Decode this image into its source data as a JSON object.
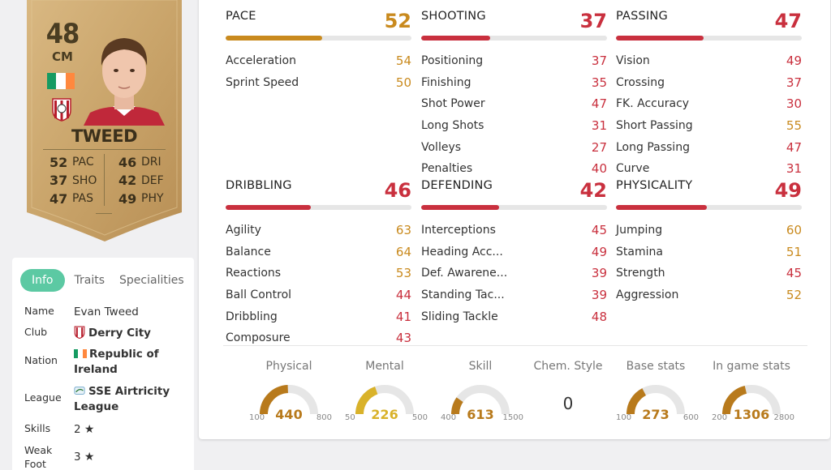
{
  "card": {
    "rating": "48",
    "position": "CM",
    "name": "TWEED",
    "stats_left": [
      {
        "value": "52",
        "key": "PAC"
      },
      {
        "value": "37",
        "key": "SHO"
      },
      {
        "value": "47",
        "key": "PAS"
      }
    ],
    "stats_right": [
      {
        "value": "46",
        "key": "DRI"
      },
      {
        "value": "42",
        "key": "DEF"
      },
      {
        "value": "49",
        "key": "PHY"
      }
    ]
  },
  "info": {
    "tabs": [
      "Info",
      "Traits",
      "Specialities"
    ],
    "rows": [
      {
        "label": "Name",
        "value": "Evan Tweed"
      },
      {
        "label": "Club",
        "value": "Derry City"
      },
      {
        "label": "Nation",
        "value": "Republic of Ireland"
      },
      {
        "label": "League",
        "value": "SSE Airtricity League"
      },
      {
        "label": "Skills",
        "value": "2"
      },
      {
        "label": "Weak Foot",
        "value": "3"
      }
    ]
  },
  "categories": [
    {
      "title": "PACE",
      "value": "52",
      "color": "#c98a1e",
      "fill": 0.52,
      "subs": [
        {
          "name": "Acceleration",
          "value": "54",
          "color": "#c98a1e"
        },
        {
          "name": "Sprint Speed",
          "value": "50",
          "color": "#c98a1e"
        }
      ]
    },
    {
      "title": "SHOOTING",
      "value": "37",
      "color": "#c9303e",
      "fill": 0.37,
      "subs": [
        {
          "name": "Positioning",
          "value": "37",
          "color": "#c9303e"
        },
        {
          "name": "Finishing",
          "value": "35",
          "color": "#c9303e"
        },
        {
          "name": "Shot Power",
          "value": "47",
          "color": "#c9303e"
        },
        {
          "name": "Long Shots",
          "value": "31",
          "color": "#c9303e"
        },
        {
          "name": "Volleys",
          "value": "27",
          "color": "#c9303e"
        },
        {
          "name": "Penalties",
          "value": "40",
          "color": "#c9303e"
        }
      ]
    },
    {
      "title": "PASSING",
      "value": "47",
      "color": "#c9303e",
      "fill": 0.47,
      "subs": [
        {
          "name": "Vision",
          "value": "49",
          "color": "#c9303e"
        },
        {
          "name": "Crossing",
          "value": "37",
          "color": "#c9303e"
        },
        {
          "name": "FK. Accuracy",
          "value": "30",
          "color": "#c9303e"
        },
        {
          "name": "Short Passing",
          "value": "55",
          "color": "#c98a1e"
        },
        {
          "name": "Long Passing",
          "value": "47",
          "color": "#c9303e"
        },
        {
          "name": "Curve",
          "value": "31",
          "color": "#c9303e"
        }
      ]
    },
    {
      "title": "DRIBBLING",
      "value": "46",
      "color": "#c9303e",
      "fill": 0.46,
      "subs": [
        {
          "name": "Agility",
          "value": "63",
          "color": "#c98a1e"
        },
        {
          "name": "Balance",
          "value": "64",
          "color": "#c98a1e"
        },
        {
          "name": "Reactions",
          "value": "53",
          "color": "#c98a1e"
        },
        {
          "name": "Ball Control",
          "value": "44",
          "color": "#c9303e"
        },
        {
          "name": "Dribbling",
          "value": "41",
          "color": "#c9303e"
        },
        {
          "name": "Composure",
          "value": "43",
          "color": "#c9303e"
        }
      ]
    },
    {
      "title": "DEFENDING",
      "value": "42",
      "color": "#c9303e",
      "fill": 0.42,
      "subs": [
        {
          "name": "Interceptions",
          "value": "45",
          "color": "#c9303e"
        },
        {
          "name": "Heading Acc...",
          "value": "49",
          "color": "#c9303e"
        },
        {
          "name": "Def. Awarene...",
          "value": "39",
          "color": "#c9303e"
        },
        {
          "name": "Standing Tac...",
          "value": "39",
          "color": "#c9303e"
        },
        {
          "name": "Sliding Tackle",
          "value": "48",
          "color": "#c9303e"
        }
      ]
    },
    {
      "title": "PHYSICALITY",
      "value": "49",
      "color": "#c9303e",
      "fill": 0.49,
      "subs": [
        {
          "name": "Jumping",
          "value": "60",
          "color": "#c98a1e"
        },
        {
          "name": "Stamina",
          "value": "51",
          "color": "#c98a1e"
        },
        {
          "name": "Strength",
          "value": "45",
          "color": "#c9303e"
        },
        {
          "name": "Aggression",
          "value": "52",
          "color": "#c98a1e"
        }
      ]
    }
  ],
  "gauges": [
    {
      "label": "Physical",
      "value": "440",
      "min": "100",
      "max": "800",
      "fill": 0.486,
      "color": "#b87a1c"
    },
    {
      "label": "Mental",
      "value": "226",
      "min": "50",
      "max": "500",
      "fill": 0.391,
      "color": "#d9b22a"
    },
    {
      "label": "Skill",
      "value": "613",
      "min": "400",
      "max": "1500",
      "fill": 0.194,
      "color": "#b87a1c"
    },
    {
      "label": "Chem. Style",
      "value": "0"
    },
    {
      "label": "Base stats",
      "value": "273",
      "min": "100",
      "max": "600",
      "fill": 0.346,
      "color": "#b87a1c"
    },
    {
      "label": "In game stats",
      "value": "1306",
      "min": "200",
      "max": "2800",
      "fill": 0.425,
      "color": "#b87a1c"
    }
  ]
}
